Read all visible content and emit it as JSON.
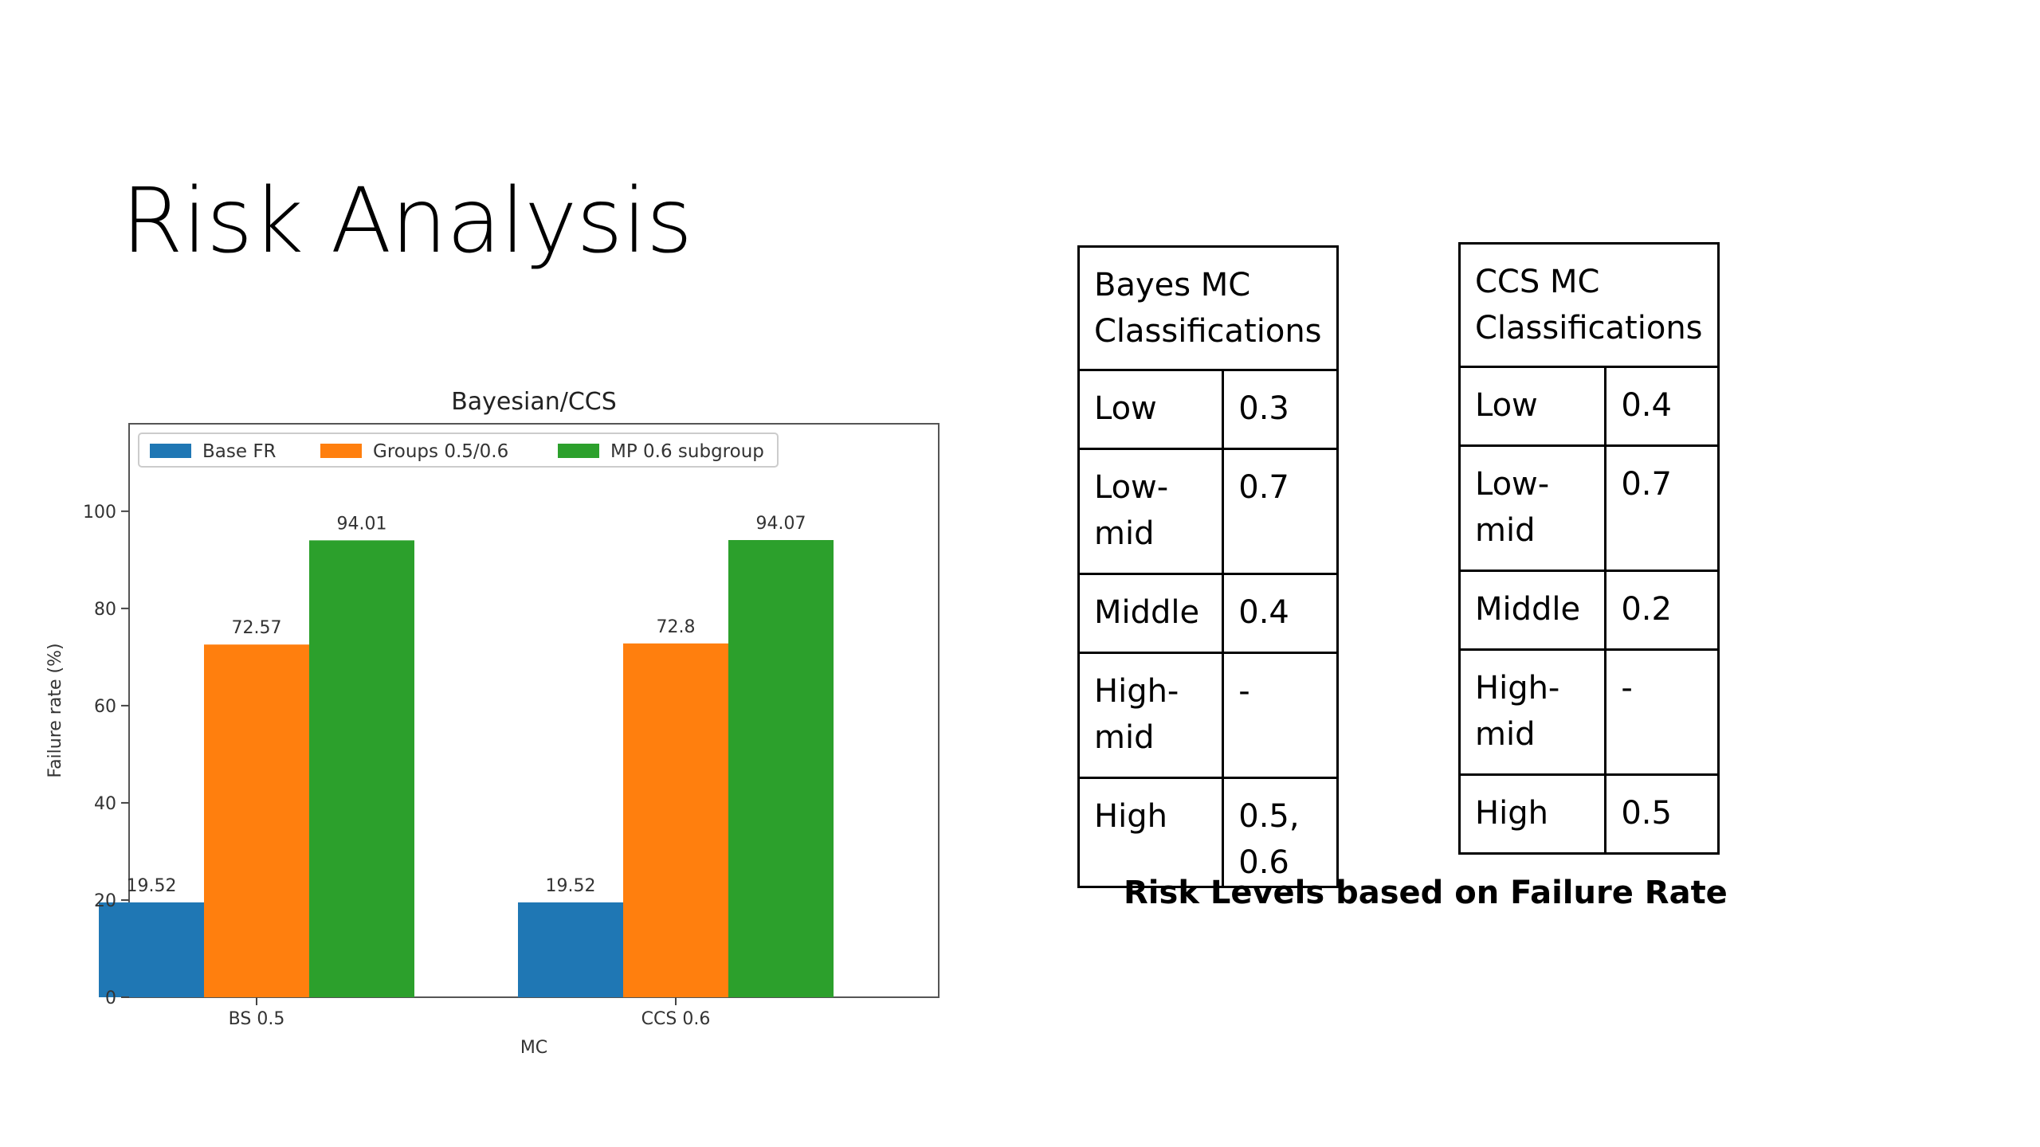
{
  "slide": {
    "title": "Risk Analysis"
  },
  "chart_data": {
    "type": "bar",
    "title": "Bayesian/CCS",
    "xlabel": "MC",
    "ylabel": "Failure rate (%)",
    "categories": [
      "BS 0.5",
      "CCS 0.6"
    ],
    "series": [
      {
        "name": "Base FR",
        "values": [
          19.52,
          19.52
        ],
        "color": "#1f77b4"
      },
      {
        "name": "Groups 0.5/0.6",
        "values": [
          72.57,
          72.8
        ],
        "color": "#ff7f0e"
      },
      {
        "name": "MP 0.6 subgroup",
        "values": [
          94.01,
          94.07
        ],
        "color": "#2ca02c"
      }
    ],
    "data_labels": [
      [
        "19.52",
        "19.52"
      ],
      [
        "72.57",
        "72.8"
      ],
      [
        "94.01",
        "94.07"
      ]
    ],
    "ylim": [
      0,
      118
    ],
    "yticks": [
      0,
      20,
      40,
      60,
      80,
      100
    ],
    "legend_position": "top-left",
    "grid": false
  },
  "tables": [
    {
      "header": "Bayes MC Classifications",
      "rows": [
        {
          "level": "Low",
          "value": "0.3"
        },
        {
          "level": "Low-mid",
          "value": "0.7"
        },
        {
          "level": "Middle",
          "value": "0.4"
        },
        {
          "level": "High-mid",
          "value": "-"
        },
        {
          "level": "High",
          "value": "0.5, 0.6"
        }
      ]
    },
    {
      "header": "CCS MC Classifications",
      "rows": [
        {
          "level": "Low",
          "value": "0.4"
        },
        {
          "level": "Low-mid",
          "value": "0.7"
        },
        {
          "level": "Middle",
          "value": "0.2"
        },
        {
          "level": "High-mid",
          "value": "-"
        },
        {
          "level": "High",
          "value": "0.5"
        }
      ]
    }
  ],
  "caption": "Risk Levels based on Failure Rate"
}
